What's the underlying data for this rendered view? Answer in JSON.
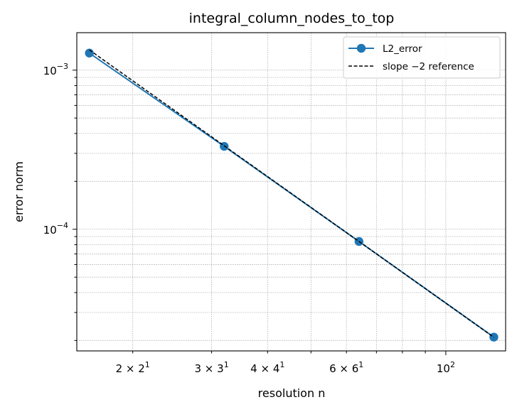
{
  "chart_data": {
    "type": "line",
    "title": "integral_column_nodes_to_top",
    "xlabel": "resolution n",
    "ylabel": "error norm",
    "xscale": "log",
    "yscale": "log",
    "xlim": [
      15.0,
      136.0
    ],
    "ylim": [
      1.72e-05,
      0.00172
    ],
    "grid": true,
    "grid_which": "both",
    "legend_position": "upper right",
    "x_tick_labels": [
      {
        "value": 20,
        "base": "2",
        "exp": "1",
        "prefix": "2 × "
      },
      {
        "value": 30,
        "base": "3",
        "exp": "1",
        "prefix": "3 × "
      },
      {
        "value": 40,
        "base": "4",
        "exp": "1",
        "prefix": "4 × "
      },
      {
        "value": 60,
        "base": "6",
        "exp": "1",
        "prefix": "6 × "
      },
      {
        "value": 100,
        "base": "10",
        "exp": "2",
        "prefix": ""
      }
    ],
    "y_tick_labels": [
      {
        "value": 0.001,
        "base": "10",
        "exp": "−3"
      },
      {
        "value": 0.0001,
        "base": "10",
        "exp": "−4"
      }
    ],
    "series": [
      {
        "name": "L2_error",
        "color": "#1f77b4",
        "style": "solid",
        "marker": "circle",
        "x": [
          16,
          32,
          64,
          128
        ],
        "y": [
          0.00128,
          0.000332,
          8.38e-05,
          2.1e-05
        ]
      },
      {
        "name": "slope −2 reference",
        "color": "#000000",
        "style": "dashed",
        "marker": "none",
        "x": [
          16,
          32,
          64,
          128
        ],
        "y": [
          0.00134,
          0.000335,
          8.38e-05,
          2.095e-05
        ]
      }
    ]
  }
}
